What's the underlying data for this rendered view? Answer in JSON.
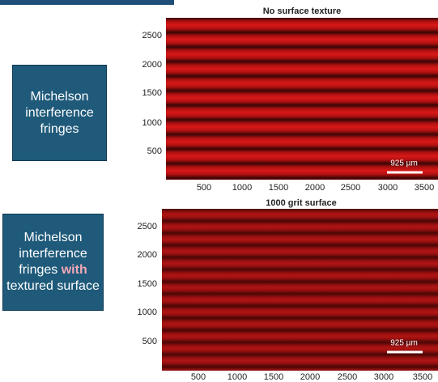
{
  "box1": {
    "text": "Michelson interference fringes"
  },
  "box2": {
    "before": "Michelson interference fringes",
    "highlight": "with",
    "after": "textured surface"
  },
  "panels": [
    {
      "title": "No surface texture",
      "yticks": [
        2500,
        2000,
        1500,
        1000,
        500
      ],
      "xticks": [
        500,
        1000,
        1500,
        2000,
        2500,
        3000,
        3500
      ],
      "scale_label": "925 µm"
    },
    {
      "title": "1000 grit surface",
      "yticks": [
        2500,
        2000,
        1500,
        1000,
        500
      ],
      "xticks": [
        500,
        1000,
        1500,
        2000,
        2500,
        3000,
        3500
      ],
      "scale_label": "925 µm"
    }
  ]
}
